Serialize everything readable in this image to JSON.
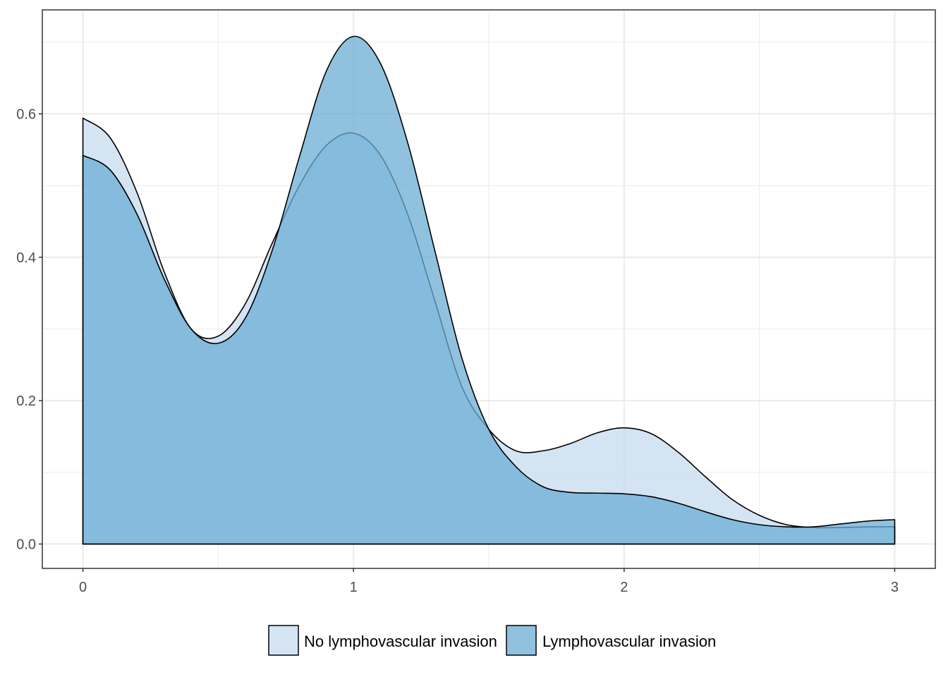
{
  "chart_data": {
    "type": "area",
    "title": "",
    "xlabel": "",
    "ylabel": "",
    "xlim": [
      -0.15,
      3.15
    ],
    "ylim": [
      -0.034,
      0.745
    ],
    "x_ticks": [
      0,
      1,
      2,
      3
    ],
    "x_tick_labels": [
      "0",
      "1",
      "2",
      "3"
    ],
    "y_ticks": [
      0.0,
      0.2,
      0.4,
      0.6
    ],
    "y_tick_labels": [
      "0.0",
      "0.2",
      "0.4",
      "0.6"
    ],
    "grid": true,
    "legend_position": "bottom",
    "series": [
      {
        "name": "No lymphovascular invasion",
        "color": "#c6dbef",
        "x": [
          0,
          0.1,
          0.2,
          0.3,
          0.4,
          0.5,
          0.6,
          0.7,
          0.8,
          0.9,
          1.0,
          1.1,
          1.2,
          1.3,
          1.4,
          1.5,
          1.6,
          1.7,
          1.8,
          1.9,
          2.0,
          2.1,
          2.2,
          2.3,
          2.4,
          2.5,
          2.6,
          2.7,
          2.8,
          2.9,
          3.0
        ],
        "values": [
          0.594,
          0.567,
          0.49,
          0.38,
          0.3,
          0.29,
          0.335,
          0.42,
          0.5,
          0.556,
          0.573,
          0.542,
          0.46,
          0.34,
          0.22,
          0.16,
          0.13,
          0.13,
          0.14,
          0.155,
          0.162,
          0.154,
          0.128,
          0.094,
          0.062,
          0.04,
          0.027,
          0.023,
          0.023,
          0.024,
          0.024
        ]
      },
      {
        "name": "Lymphovascular invasion",
        "color": "#6baed6",
        "x": [
          0,
          0.1,
          0.2,
          0.3,
          0.4,
          0.5,
          0.6,
          0.7,
          0.8,
          0.9,
          1.0,
          1.1,
          1.2,
          1.3,
          1.4,
          1.5,
          1.6,
          1.7,
          1.8,
          1.9,
          2.0,
          2.1,
          2.2,
          2.3,
          2.4,
          2.5,
          2.6,
          2.7,
          2.8,
          2.9,
          3.0
        ],
        "values": [
          0.542,
          0.522,
          0.46,
          0.37,
          0.3,
          0.28,
          0.315,
          0.41,
          0.54,
          0.66,
          0.708,
          0.67,
          0.56,
          0.41,
          0.26,
          0.16,
          0.108,
          0.08,
          0.072,
          0.071,
          0.07,
          0.066,
          0.057,
          0.045,
          0.034,
          0.027,
          0.024,
          0.024,
          0.028,
          0.032,
          0.034
        ]
      }
    ]
  }
}
